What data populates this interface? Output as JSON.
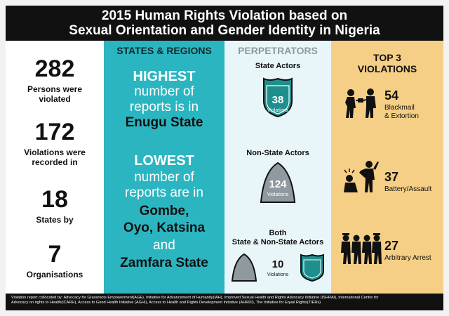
{
  "title_line1": "2015 Human Rights Violation based on",
  "title_line2": "Sexual Orientation and Gender Identity in Nigeria",
  "stats": [
    {
      "number": "282",
      "label_lines": [
        "Persons were",
        "violated"
      ]
    },
    {
      "number": "172",
      "label_lines": [
        "Violations were",
        "recorded in"
      ]
    },
    {
      "number": "18",
      "label_lines": [
        "States by"
      ]
    },
    {
      "number": "7",
      "label_lines": [
        "Organisations"
      ]
    }
  ],
  "states": {
    "heading": "STATES & REGIONS",
    "highest_word": "HIGHEST",
    "highest_lines": [
      "number of",
      "reports is in"
    ],
    "highest_state": "Enugu State",
    "lowest_word": "LOWEST",
    "lowest_lines": [
      "number of",
      "reports are in"
    ],
    "lowest_states": [
      "Gombe,",
      "Oyo, Katsina"
    ],
    "and_word": "and",
    "last_state": "Zamfara State"
  },
  "perpetrators": {
    "heading": "PERPETRATORS",
    "state_actors": {
      "label": "State Actors",
      "value": "38",
      "unit": "Violations"
    },
    "non_state_actors": {
      "label": "Non-State Actors",
      "value": "124",
      "unit": "Violations"
    },
    "both": {
      "label_line1": "Both",
      "label_line2": "State & Non-State Actors",
      "value": "10",
      "unit": "Violations"
    }
  },
  "top_violations": {
    "heading_line1": "TOP 3",
    "heading_line2": "VIOLATIONS",
    "items": [
      {
        "value": "54",
        "label_lines": [
          "Blackmail",
          "& Extortion"
        ],
        "icon": "blackmail-icon"
      },
      {
        "value": "37",
        "label_lines": [
          "Battery/Assault"
        ],
        "icon": "assault-icon"
      },
      {
        "value": "27",
        "label_lines": [
          "Arbitrary Arrest"
        ],
        "icon": "arrest-icon"
      }
    ]
  },
  "colors": {
    "teal": "#2bb5c0",
    "shield_teal": "#1f8f8d",
    "gray_shield": "#8f9aa0",
    "gold": "#f6cf86",
    "dark": "#111111"
  },
  "footer_line1": "Violation report collocated by: Advocacy for Grassroots Empowerment(AGE), Initiative for Advancement of Humanity(IAH), Improved Sexual Health and Rights Advocacy Initiative (ISHRAI), International Centre for",
  "footer_line2": "Advocacy on rights to Health(ICARH), Access to Good Health Initiative (AGHI), Access to Health and Rights Development Initiative (AHRDI), The Initiative for Equal Rights(TIERs)"
}
